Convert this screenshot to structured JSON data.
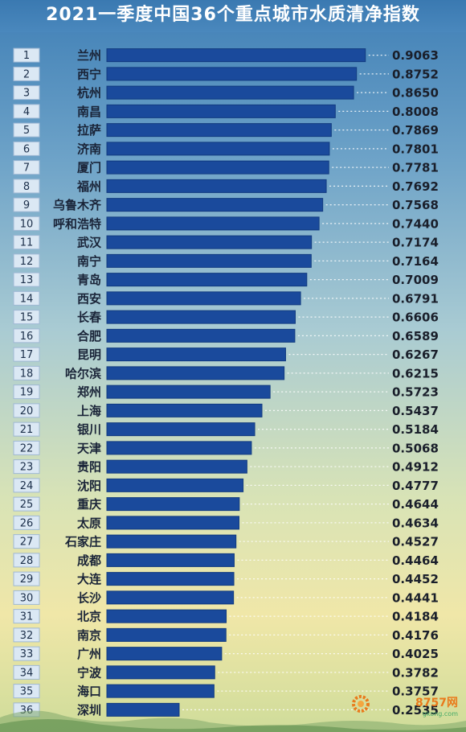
{
  "chart_data": {
    "type": "bar",
    "orientation": "horizontal",
    "title": "2021一季度中国36个重点城市水质清净指数",
    "categories": [
      "兰州",
      "西宁",
      "杭州",
      "南昌",
      "拉萨",
      "济南",
      "厦门",
      "福州",
      "乌鲁木齐",
      "呼和浩特",
      "武汉",
      "南宁",
      "青岛",
      "西安",
      "长春",
      "合肥",
      "昆明",
      "哈尔滨",
      "郑州",
      "上海",
      "银川",
      "天津",
      "贵阳",
      "沈阳",
      "重庆",
      "太原",
      "石家庄",
      "成都",
      "大连",
      "长沙",
      "北京",
      "南京",
      "广州",
      "宁波",
      "海口",
      "深圳"
    ],
    "ranks": [
      "1",
      "2",
      "3",
      "4",
      "5",
      "6",
      "7",
      "8",
      "9",
      "10",
      "11",
      "12",
      "13",
      "14",
      "15",
      "16",
      "17",
      "18",
      "19",
      "20",
      "21",
      "22",
      "23",
      "24",
      "25",
      "26",
      "27",
      "28",
      "29",
      "30",
      "31",
      "32",
      "33",
      "34",
      "35",
      "36"
    ],
    "values": [
      0.9063,
      0.8752,
      0.865,
      0.8008,
      0.7869,
      0.7801,
      0.7781,
      0.7692,
      0.7568,
      0.744,
      0.7174,
      0.7164,
      0.7009,
      0.6791,
      0.6606,
      0.6589,
      0.6267,
      0.6215,
      0.5723,
      0.5437,
      0.5184,
      0.5068,
      0.4912,
      0.4777,
      0.4644,
      0.4634,
      0.4527,
      0.4464,
      0.4452,
      0.4441,
      0.4184,
      0.4176,
      0.4025,
      0.3782,
      0.3757,
      0.2535
    ],
    "value_labels": [
      "0.9063",
      "0.8752",
      "0.8650",
      "0.8008",
      "0.7869",
      "0.7801",
      "0.7781",
      "0.7692",
      "0.7568",
      "0.7440",
      "0.7174",
      "0.7164",
      "0.7009",
      "0.6791",
      "0.6606",
      "0.6589",
      "0.6267",
      "0.6215",
      "0.5723",
      "0.5437",
      "0.5184",
      "0.5068",
      "0.4912",
      "0.4777",
      "0.4644",
      "0.4634",
      "0.4527",
      "0.4464",
      "0.4452",
      "0.4441",
      "0.4184",
      "0.4176",
      "0.4025",
      "0.3782",
      "0.3757",
      "0.2535"
    ],
    "xlim": [
      0,
      1
    ],
    "grid": false,
    "legend": "none"
  },
  "colors": {
    "bar": "#1a4a9c",
    "bar_edge": "#123b80",
    "rank_box": "#dbe8f4",
    "rank_box_border": "#9fb8d4",
    "leader": "#ffffff"
  },
  "watermark": {
    "text": "8757网",
    "sub": "gkong.com"
  }
}
